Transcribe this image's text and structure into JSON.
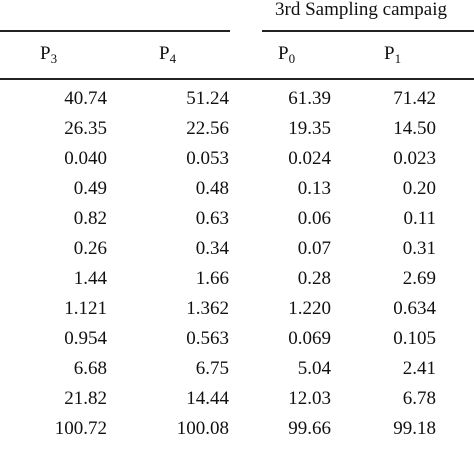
{
  "header": {
    "campaign_label": "3rd Sampling campaig",
    "columns": [
      {
        "base": "P",
        "sub": "3"
      },
      {
        "base": "P",
        "sub": "4"
      },
      {
        "base": "P",
        "sub": "0"
      },
      {
        "base": "P",
        "sub": "1"
      }
    ]
  },
  "rows": [
    [
      "40.74",
      "51.24",
      "61.39",
      "71.42"
    ],
    [
      "26.35",
      "22.56",
      "19.35",
      "14.50"
    ],
    [
      "0.040",
      "0.053",
      "0.024",
      "0.023"
    ],
    [
      "0.49",
      "0.48",
      "0.13",
      "0.20"
    ],
    [
      "0.82",
      "0.63",
      "0.06",
      "0.11"
    ],
    [
      "0.26",
      "0.34",
      "0.07",
      "0.31"
    ],
    [
      "1.44",
      "1.66",
      "0.28",
      "2.69"
    ],
    [
      "1.121",
      "1.362",
      "1.220",
      "0.634"
    ],
    [
      "0.954",
      "0.563",
      "0.069",
      "0.105"
    ],
    [
      "6.68",
      "6.75",
      "5.04",
      "2.41"
    ],
    [
      "21.82",
      "14.44",
      "12.03",
      "6.78"
    ],
    [
      "100.72",
      "100.08",
      "99.66",
      "99.18"
    ]
  ]
}
